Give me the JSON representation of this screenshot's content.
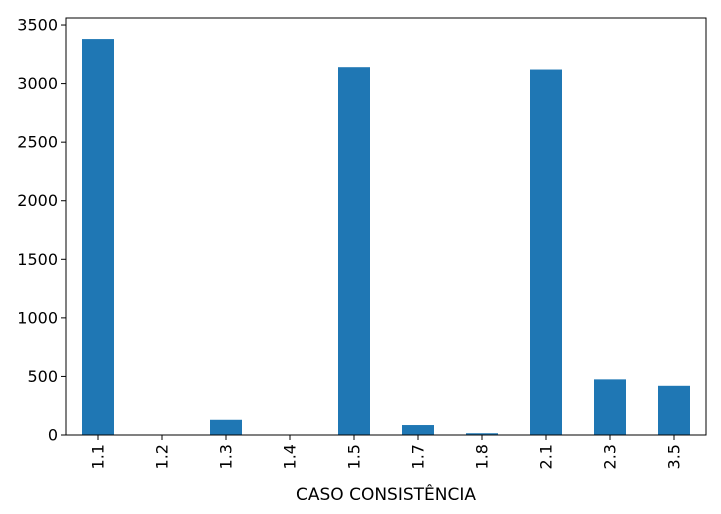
{
  "chart_data": {
    "type": "bar",
    "xlabel": "CASO CONSISTÊNCIA",
    "ylabel": "",
    "categories": [
      "1.1",
      "1.2",
      "1.3",
      "1.4",
      "1.5",
      "1.7",
      "1.8",
      "2.1",
      "2.3",
      "3.5"
    ],
    "values": [
      3380,
      2,
      130,
      2,
      3140,
      85,
      15,
      3120,
      475,
      420
    ],
    "ylim": [
      0,
      3560
    ],
    "yticks": [
      0,
      500,
      1000,
      1500,
      2000,
      2500,
      3000,
      3500
    ],
    "bar_color": "#1f77b4",
    "grid": false,
    "legend": "none"
  }
}
